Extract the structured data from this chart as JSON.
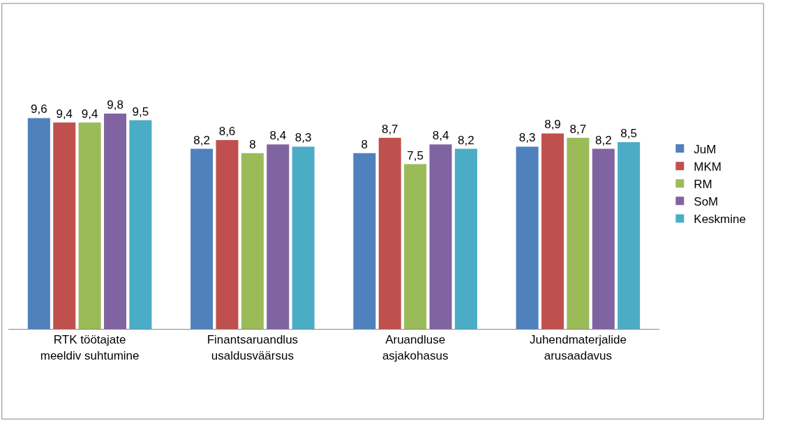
{
  "chart_data": {
    "type": "bar",
    "categories": [
      "RTK töötajate meeldiv suhtumine",
      "Finantsaruandlus usaldusväärsus",
      "Aruandluse asjakohasus",
      "Juhendmaterjalide arusaadavus"
    ],
    "series": [
      {
        "name": "JuM",
        "color": "#4f81bd",
        "values": [
          9.6,
          8.2,
          8,
          8.3
        ],
        "value_labels": [
          "9,6",
          "8,2",
          "8",
          "8,3"
        ]
      },
      {
        "name": "MKM",
        "color": "#c0504d",
        "values": [
          9.4,
          8.6,
          8.7,
          8.9
        ],
        "value_labels": [
          "9,4",
          "8,6",
          "8,7",
          "8,9"
        ]
      },
      {
        "name": "RM",
        "color": "#9bbb59",
        "values": [
          9.4,
          8,
          7.5,
          8.7
        ],
        "value_labels": [
          "9,4",
          "8",
          "7,5",
          "8,7"
        ]
      },
      {
        "name": "SoM",
        "color": "#8064a2",
        "values": [
          9.8,
          8.4,
          8.4,
          8.2
        ],
        "value_labels": [
          "9,8",
          "8,4",
          "8,4",
          "8,2"
        ]
      },
      {
        "name": "Keskmine",
        "color": "#4bacc6",
        "values": [
          9.5,
          8.3,
          8.2,
          8.5
        ],
        "value_labels": [
          "9,5",
          "8,3",
          "8,2",
          "8,5"
        ]
      }
    ],
    "legend": "right"
  }
}
